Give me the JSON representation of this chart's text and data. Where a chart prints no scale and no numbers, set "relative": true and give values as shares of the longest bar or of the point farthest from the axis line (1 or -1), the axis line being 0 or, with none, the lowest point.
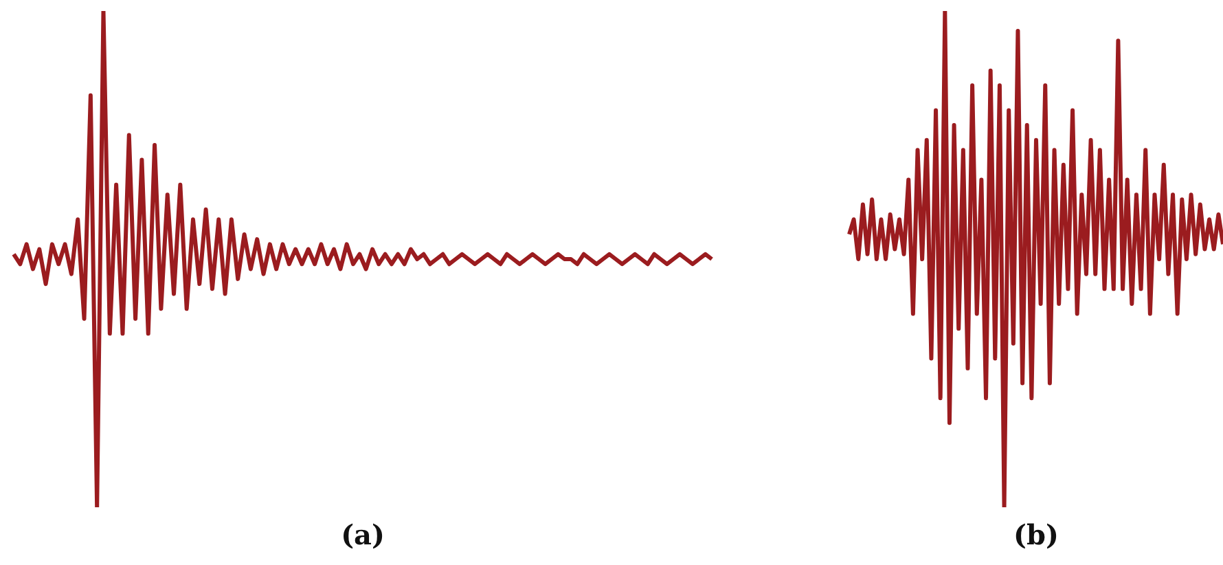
{
  "chart_data": [
    {
      "type": "line",
      "title": "(a)",
      "relative": true,
      "marker": "none",
      "color": "#9b1c1f",
      "categories": [
        null,
        null,
        null,
        null,
        null,
        null,
        null,
        null,
        null,
        null,
        null,
        null,
        null,
        null,
        null,
        null,
        null,
        null,
        null,
        null,
        null,
        null,
        null,
        null,
        null,
        null,
        null,
        null,
        null,
        null,
        null,
        null,
        null,
        null,
        null,
        null,
        null,
        null,
        null,
        null,
        null,
        null,
        null,
        null,
        null,
        null,
        null,
        null,
        null,
        null,
        null,
        null,
        null,
        null,
        null,
        null,
        null,
        null,
        null,
        null,
        null,
        null,
        null,
        null,
        null,
        null,
        null,
        null,
        null,
        null,
        null,
        null,
        null,
        null,
        null,
        null,
        null,
        null,
        null,
        null,
        null,
        null,
        null,
        null,
        null,
        null,
        null,
        null,
        null,
        null,
        null,
        null,
        null,
        null,
        null,
        null,
        null,
        null,
        null,
        null,
        null,
        null,
        null,
        null,
        null,
        null,
        null,
        null,
        null,
        null
      ],
      "values": [
        0.51,
        0.49,
        0.53,
        0.48,
        0.52,
        0.45,
        0.53,
        0.49,
        0.53,
        0.47,
        0.58,
        0.38,
        0.83,
        0,
        1,
        0.35,
        0.65,
        0.35,
        0.75,
        0.38,
        0.7,
        0.35,
        0.73,
        0.4,
        0.63,
        0.43,
        0.65,
        0.4,
        0.58,
        0.45,
        0.6,
        0.44,
        0.58,
        0.43,
        0.58,
        0.46,
        0.55,
        0.48,
        0.54,
        0.47,
        0.53,
        0.48,
        0.53,
        0.49,
        0.52,
        0.49,
        0.52,
        0.49,
        0.53,
        0.49,
        0.52,
        0.48,
        0.53,
        0.49,
        0.51,
        0.48,
        0.52,
        0.49,
        0.51,
        0.49,
        0.51,
        0.49,
        0.52,
        0.5,
        0.51,
        0.49,
        0.5,
        0.51,
        0.49,
        0.5,
        0.51,
        0.5,
        0.49,
        0.5,
        0.51,
        0.5,
        0.49,
        0.51,
        0.5,
        0.49,
        0.5,
        0.51,
        0.5,
        0.49,
        0.5,
        0.51,
        0.5,
        0.5,
        0.49,
        0.51,
        0.5,
        0.49,
        0.5,
        0.51,
        0.5,
        0.49,
        0.5,
        0.51,
        0.5,
        0.49,
        0.51,
        0.5,
        0.49,
        0.5,
        0.51,
        0.5,
        0.49,
        0.5,
        0.51,
        0.5
      ]
    },
    {
      "type": "line",
      "title": "(b)",
      "relative": true,
      "marker": "none",
      "color": "#9b1c1f",
      "categories": [
        null,
        null,
        null,
        null,
        null,
        null,
        null,
        null,
        null,
        null,
        null,
        null,
        null,
        null,
        null,
        null,
        null,
        null,
        null,
        null,
        null,
        null,
        null,
        null,
        null,
        null,
        null,
        null,
        null,
        null,
        null,
        null,
        null,
        null,
        null,
        null,
        null,
        null,
        null,
        null,
        null,
        null,
        null,
        null,
        null,
        null,
        null,
        null,
        null,
        null,
        null,
        null,
        null,
        null,
        null,
        null,
        null,
        null,
        null,
        null,
        null,
        null,
        null,
        null,
        null,
        null,
        null,
        null,
        null,
        null,
        null,
        null,
        null,
        null,
        null,
        null,
        null,
        null,
        null,
        null,
        null,
        null,
        null
      ],
      "values": [
        0.55,
        0.58,
        0.5,
        0.61,
        0.51,
        0.62,
        0.5,
        0.58,
        0.5,
        0.59,
        0.52,
        0.58,
        0.51,
        0.66,
        0.39,
        0.72,
        0.5,
        0.74,
        0.3,
        0.8,
        0.22,
        1,
        0.17,
        0.77,
        0.36,
        0.72,
        0.28,
        0.85,
        0.39,
        0.66,
        0.22,
        0.88,
        0.3,
        0.85,
        0,
        0.8,
        0.33,
        0.96,
        0.25,
        0.77,
        0.22,
        0.74,
        0.41,
        0.85,
        0.25,
        0.72,
        0.41,
        0.69,
        0.44,
        0.8,
        0.39,
        0.63,
        0.47,
        0.74,
        0.47,
        0.72,
        0.44,
        0.66,
        0.44,
        0.94,
        0.44,
        0.66,
        0.41,
        0.63,
        0.44,
        0.72,
        0.39,
        0.63,
        0.5,
        0.69,
        0.47,
        0.63,
        0.39,
        0.62,
        0.5,
        0.63,
        0.51,
        0.61,
        0.52,
        0.58,
        0.52,
        0.59,
        0.53
      ]
    }
  ]
}
